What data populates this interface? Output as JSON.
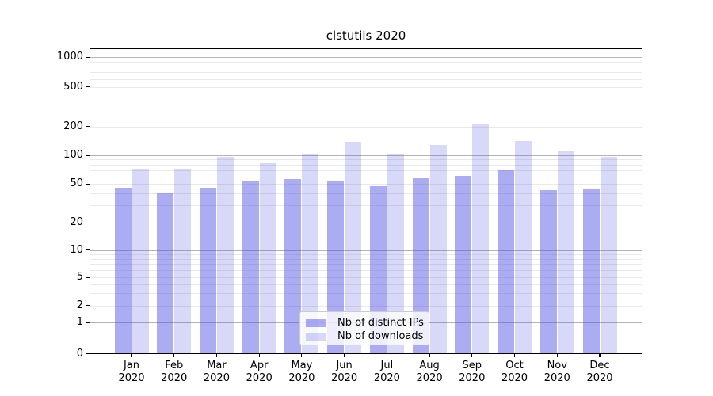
{
  "chart_data": {
    "type": "bar",
    "title": "clstutils 2020",
    "categories": [
      "Jan",
      "Feb",
      "Mar",
      "Apr",
      "May",
      "Jun",
      "Jul",
      "Aug",
      "Sep",
      "Oct",
      "Nov",
      "Dec"
    ],
    "x_tick_year": "2020",
    "series": [
      {
        "name": "Nb of distinct IPs",
        "color": "rgba(70,70,228,0.45)",
        "values": [
          45,
          40,
          45,
          53,
          56,
          53,
          47,
          57,
          61,
          70,
          43,
          44
        ]
      },
      {
        "name": "Nb of downloads",
        "color": "rgba(70,70,228,0.21)",
        "values": [
          71,
          71,
          97,
          83,
          103,
          138,
          101,
          128,
          210,
          142,
          109,
          97
        ]
      }
    ],
    "y_scale": "symlog",
    "y_ticks": [
      0,
      1,
      2,
      5,
      10,
      20,
      50,
      100,
      200,
      500,
      1000
    ],
    "y_major_ticks": [
      1,
      10,
      100,
      1000
    ],
    "ylim": [
      0,
      1150
    ],
    "grid": true,
    "legend_position": "lower center",
    "colors": {
      "grid_major": "#b4b4b4",
      "grid_minor": "#e9e9e9",
      "spine": "#000000",
      "background": "#ffffff"
    }
  }
}
